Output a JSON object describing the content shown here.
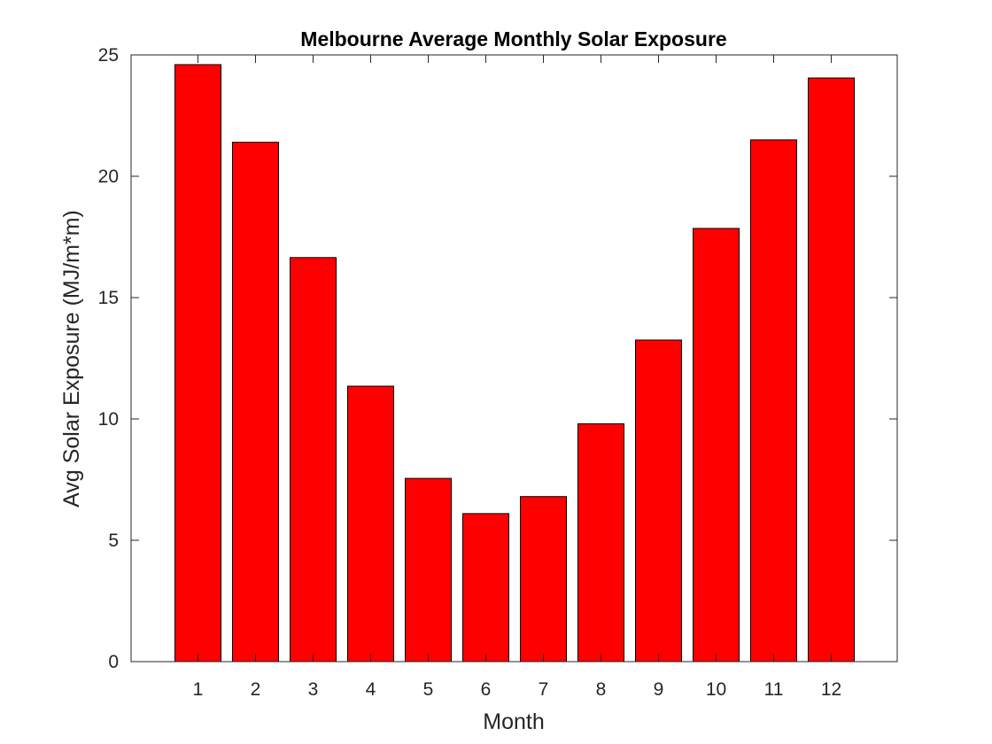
{
  "chart_data": {
    "type": "bar",
    "title": "Melbourne Average Monthly Solar Exposure",
    "xlabel": "Month",
    "ylabel": "Avg Solar Exposure (MJ/m*m)",
    "categories": [
      "1",
      "2",
      "3",
      "4",
      "5",
      "6",
      "7",
      "8",
      "9",
      "10",
      "11",
      "12"
    ],
    "values": [
      24.6,
      21.4,
      16.65,
      11.35,
      7.55,
      6.1,
      6.8,
      9.8,
      13.25,
      17.85,
      21.5,
      24.05
    ],
    "ylim": [
      0,
      25
    ],
    "yticks": [
      0,
      5,
      10,
      15,
      20,
      25
    ],
    "grid": false,
    "legend": "none",
    "colors": {
      "bar_fill": "#ff0000",
      "bar_edge": "#000000",
      "axis": "#262626",
      "background": "#ffffff"
    }
  }
}
